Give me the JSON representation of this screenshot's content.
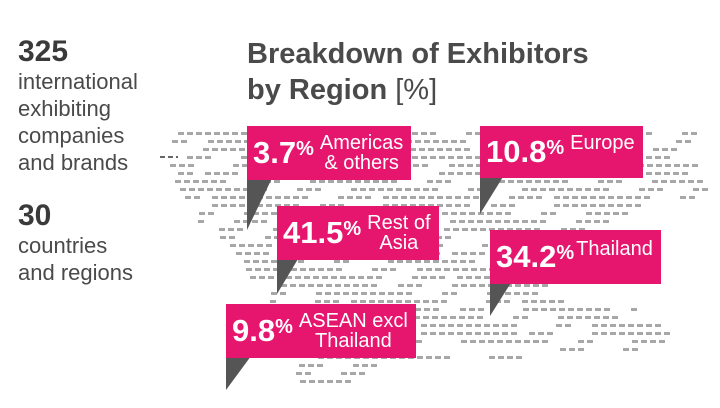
{
  "stats": {
    "companies_number": "325",
    "companies_lines": [
      "international",
      "exhibiting",
      "companies",
      "and brands"
    ],
    "countries_number": "30",
    "countries_lines": [
      "countries",
      "and regions"
    ]
  },
  "colors": {
    "accent": "#e6156e",
    "pointer": "#555555",
    "map_dots": "#8a8a8a",
    "text": "#444444"
  },
  "chart_data": {
    "type": "pie",
    "title_lines": [
      "Breakdown of Exhibitors",
      "by Region"
    ],
    "title_unit": "[%]",
    "categories": [
      "Americas & others",
      "Europe",
      "Rest of Asia",
      "Thailand",
      "ASEAN excl Thailand"
    ],
    "values": [
      3.7,
      10.8,
      41.5,
      34.2,
      9.8
    ],
    "category_labels": [
      [
        "Americas",
        "& others"
      ],
      [
        "Europe"
      ],
      [
        "Rest of",
        "Asia"
      ],
      [
        "Thailand"
      ],
      [
        "ASEAN excl",
        "Thailand"
      ]
    ],
    "value_suffix": "%"
  }
}
